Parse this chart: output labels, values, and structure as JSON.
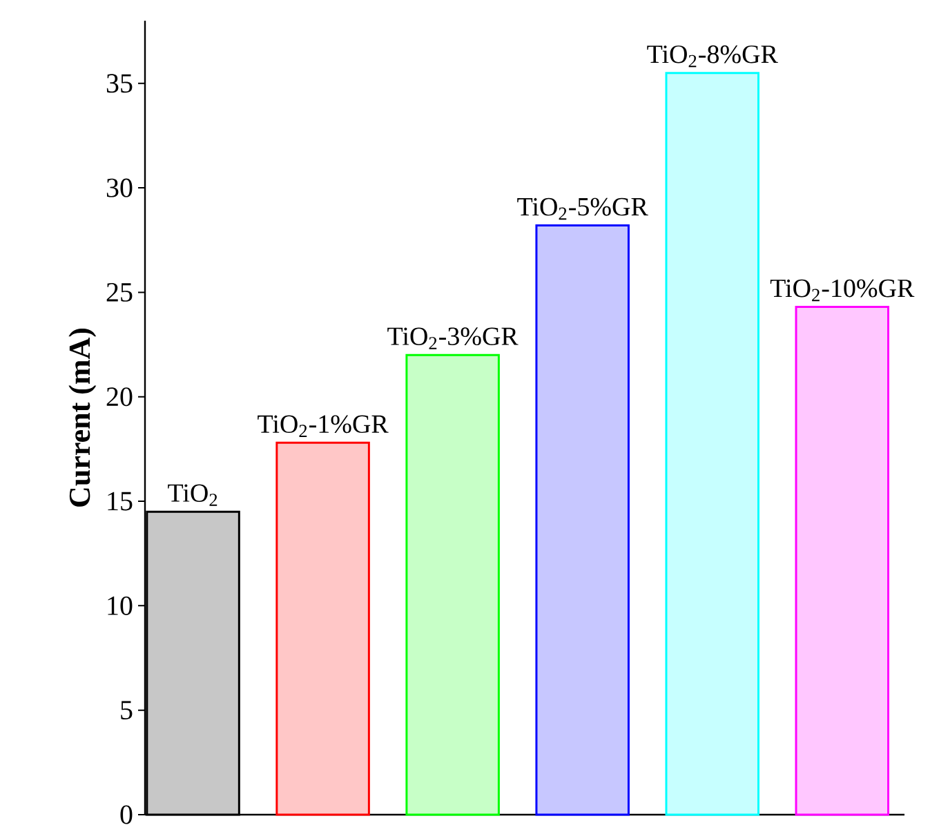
{
  "chart_data": {
    "type": "bar",
    "ylabel": "Current (mA)",
    "categories": [
      "TiO$_{2}$",
      "TiO$_{2}$-1%GR",
      "TiO$_{2}$-3%GR",
      "TiO$_{2}$-5%GR",
      "TiO$_{2}$-8%GR",
      "TiO$_{2}$-10%GR"
    ],
    "values": [
      14.5,
      17.8,
      22.0,
      28.2,
      35.5,
      24.3
    ],
    "colors": [
      "#000000",
      "#ff0000",
      "#00ff00",
      "#0000ff",
      "#00ffff",
      "#ff00ff"
    ],
    "ylim": [
      0,
      38
    ],
    "yticks": [
      0,
      5,
      10,
      15,
      20,
      25,
      30,
      35
    ]
  }
}
